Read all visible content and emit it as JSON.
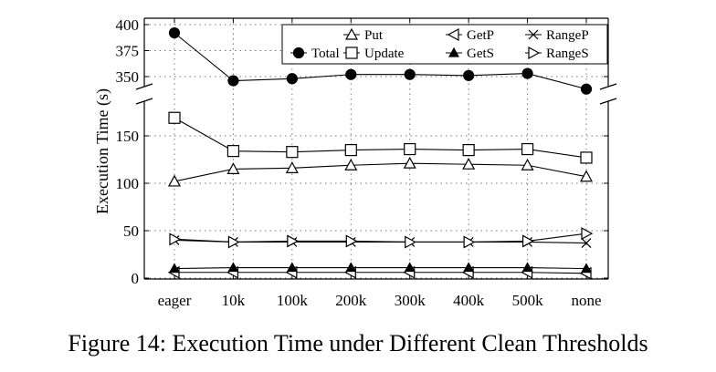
{
  "chart_data": {
    "type": "line",
    "caption": "Figure 14: Execution Time under Different Clean Thresholds",
    "xlabel": "",
    "ylabel": "Execution Time (s)",
    "categories": [
      "eager",
      "10k",
      "100k",
      "200k",
      "300k",
      "400k",
      "500k",
      "none"
    ],
    "y_axis_break": true,
    "upper_ylim": [
      335,
      400
    ],
    "upper_yticks": [
      350,
      375,
      400
    ],
    "lower_ylim": [
      0,
      180
    ],
    "lower_yticks": [
      0,
      50,
      100,
      150
    ],
    "grid": true,
    "legend_position": "top-right",
    "series": [
      {
        "name": "Total",
        "marker": "filled-circle",
        "values": [
          392,
          346,
          348,
          352,
          352,
          351,
          353,
          338
        ]
      },
      {
        "name": "Put",
        "marker": "open-triangle-up",
        "values": [
          102,
          115,
          116,
          119,
          121,
          120,
          119,
          107
        ]
      },
      {
        "name": "Update",
        "marker": "open-square",
        "values": [
          169,
          134,
          133,
          135,
          136,
          135,
          136,
          127
        ]
      },
      {
        "name": "GetP",
        "marker": "open-triangle-left",
        "values": [
          6,
          6,
          6,
          6,
          6,
          6,
          6,
          5
        ]
      },
      {
        "name": "GetS",
        "marker": "filled-triangle-up",
        "values": [
          10,
          11,
          11,
          11,
          11,
          11,
          11,
          10
        ]
      },
      {
        "name": "RangeP",
        "marker": "x-cross",
        "values": [
          40,
          38,
          38,
          38,
          38,
          38,
          38,
          37
        ]
      },
      {
        "name": "RangeS",
        "marker": "open-triangle-right",
        "values": [
          41,
          38,
          39,
          39,
          38,
          38,
          39,
          47
        ]
      }
    ]
  }
}
